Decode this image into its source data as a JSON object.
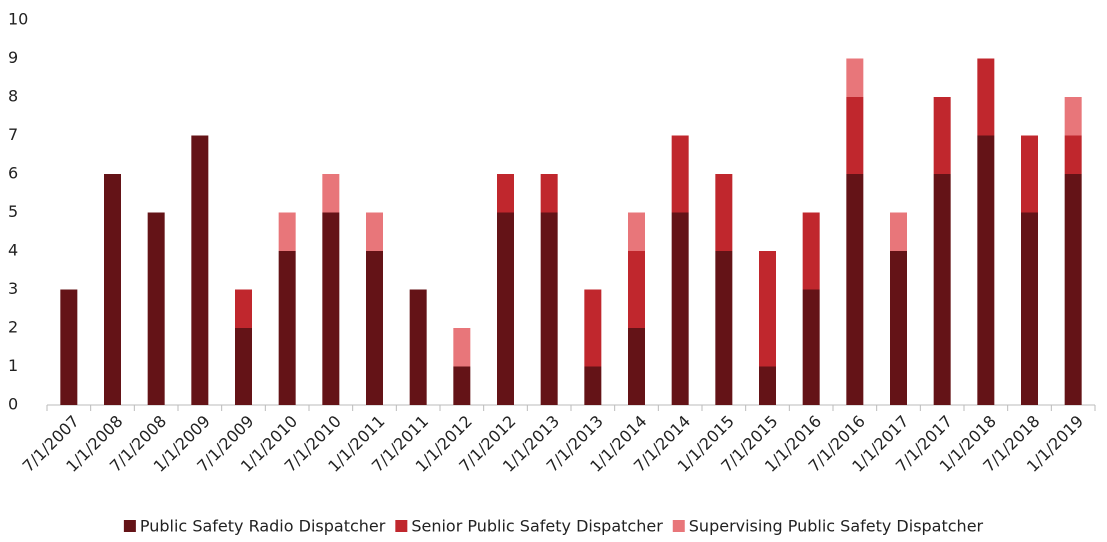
{
  "chart_data": {
    "type": "stacked_bar",
    "categories": [
      "7/1/2007",
      "1/1/2008",
      "7/1/2008",
      "1/1/2009",
      "7/1/2009",
      "1/1/2010",
      "7/1/2010",
      "1/1/2011",
      "7/1/2011",
      "1/1/2012",
      "7/1/2012",
      "1/1/2013",
      "7/1/2013",
      "1/1/2014",
      "7/1/2014",
      "1/1/2015",
      "7/1/2015",
      "1/1/2016",
      "7/1/2016",
      "1/1/2017",
      "7/1/2017",
      "1/1/2018",
      "7/1/2018",
      "1/1/2019"
    ],
    "series": [
      {
        "name": "Public Safety Radio Dispatcher",
        "color": "#641317",
        "values": [
          3,
          6,
          5,
          7,
          2,
          4,
          5,
          4,
          3,
          1,
          5,
          5,
          1,
          2,
          5,
          4,
          1,
          3,
          6,
          4,
          6,
          7,
          5,
          6
        ]
      },
      {
        "name": "Senior Public Safety Dispatcher",
        "color": "#c0272d",
        "values": [
          0,
          0,
          0,
          0,
          1,
          0,
          0,
          0,
          0,
          0,
          1,
          1,
          2,
          2,
          2,
          2,
          3,
          2,
          2,
          0,
          2,
          2,
          2,
          1
        ]
      },
      {
        "name": "Supervising Public Safety Dispatcher",
        "color": "#e8767a",
        "values": [
          0,
          0,
          0,
          0,
          0,
          1,
          1,
          1,
          0,
          1,
          0,
          0,
          0,
          1,
          0,
          0,
          0,
          0,
          1,
          1,
          0,
          0,
          0,
          1
        ]
      }
    ],
    "ylim": [
      0,
      10
    ],
    "yticks": [
      0,
      1,
      2,
      3,
      4,
      5,
      6,
      7,
      8,
      9,
      10
    ],
    "legend": "bottom"
  }
}
